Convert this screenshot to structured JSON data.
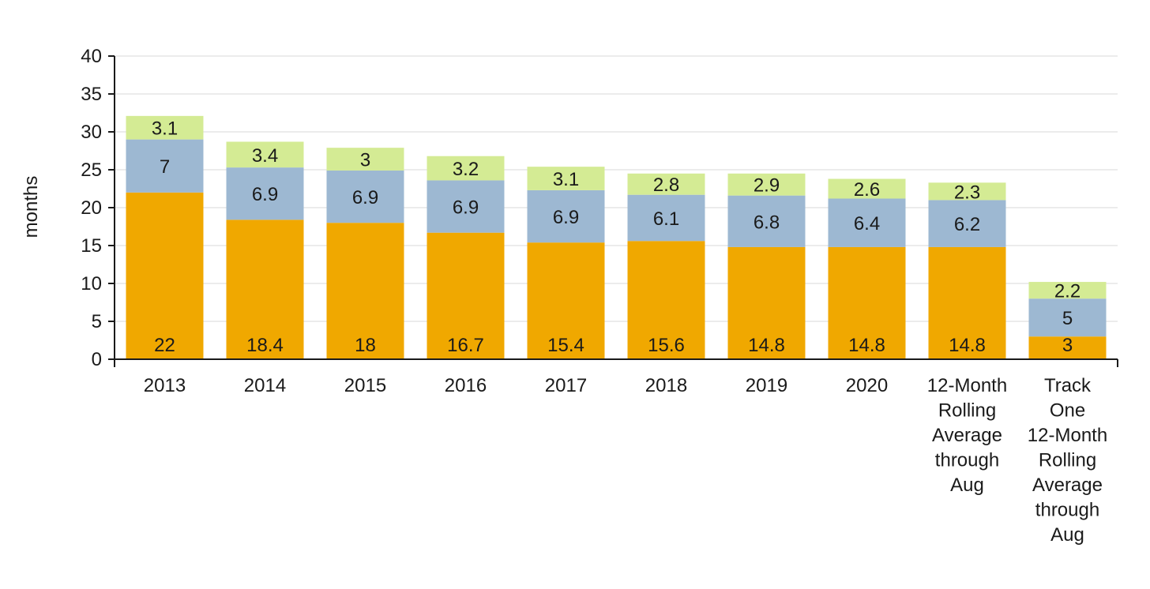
{
  "chart_data": {
    "type": "bar",
    "stacked": true,
    "ylabel": "months",
    "ylim": [
      0,
      40
    ],
    "yticks": [
      0,
      5,
      10,
      15,
      20,
      25,
      30,
      35,
      40
    ],
    "grid": true,
    "categories": [
      [
        "2013"
      ],
      [
        "2014"
      ],
      [
        "2015"
      ],
      [
        "2016"
      ],
      [
        "2017"
      ],
      [
        "2018"
      ],
      [
        "2019"
      ],
      [
        "2020"
      ],
      [
        "12-Month",
        "Rolling",
        "Average",
        "through",
        "Aug"
      ],
      [
        "Track",
        "One",
        "12-Month",
        "Rolling",
        "Average",
        "through",
        "Aug"
      ]
    ],
    "series": [
      {
        "color": "#f0a800",
        "values": [
          22,
          18.4,
          18,
          16.7,
          15.4,
          15.6,
          14.8,
          14.8,
          14.8,
          3
        ]
      },
      {
        "color": "#9db8d2",
        "values": [
          7,
          6.9,
          6.9,
          6.9,
          6.9,
          6.1,
          6.8,
          6.4,
          6.2,
          5
        ]
      },
      {
        "color": "#d4eb94",
        "values": [
          3.1,
          3.4,
          3,
          3.2,
          3.1,
          2.8,
          2.9,
          2.6,
          2.3,
          2.2
        ]
      }
    ]
  }
}
